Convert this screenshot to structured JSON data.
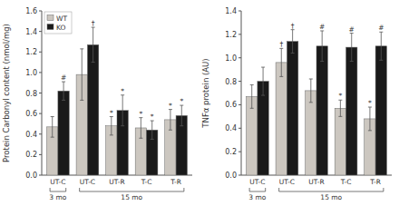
{
  "chart_data": [
    {
      "type": "bar",
      "y_label": "Protein Carbonyl content (nmol/mg)",
      "categories": [
        "UT-C",
        "UT-C",
        "UT-R",
        "T-C",
        "T-R"
      ],
      "series": [
        {
          "name": "WT",
          "color": "#ccc7c0",
          "values": [
            0.47,
            0.98,
            0.48,
            0.46,
            0.54
          ],
          "errors": [
            0.1,
            0.25,
            0.09,
            0.1,
            0.1
          ],
          "symbols": [
            null,
            null,
            "*",
            "*",
            "*"
          ]
        },
        {
          "name": "KO",
          "color": "#1a1a1a",
          "values": [
            0.82,
            1.27,
            0.63,
            0.44,
            0.58
          ],
          "errors": [
            0.09,
            0.17,
            0.15,
            0.09,
            0.1
          ],
          "symbols": [
            "#",
            "†",
            "*",
            "*",
            "*"
          ]
        }
      ],
      "ylim": [
        0,
        1.6
      ],
      "yticks": [
        {
          "value": 0.0,
          "label": "0.0"
        },
        0.2,
        0.4,
        0.6,
        0.8,
        {
          "value": 1.0,
          "label": "1.0"
        },
        1.2,
        1.4,
        1.6
      ],
      "annotations": [
        {
          "text": "3 mo",
          "from": 0,
          "to": 0
        },
        {
          "text": "15 mo",
          "from": 1,
          "to": 4
        }
      ],
      "legend": "upper left"
    },
    {
      "type": "bar",
      "y_label": "TNFα protein (AU)",
      "categories": [
        "UT-C",
        "UT-C",
        "UT-R",
        "T-C",
        "T-R"
      ],
      "series": [
        {
          "name": "WT",
          "color": "#ccc7c0",
          "values": [
            0.67,
            0.96,
            0.72,
            0.57,
            0.48
          ],
          "errors": [
            0.1,
            0.12,
            0.1,
            0.07,
            0.1
          ],
          "symbols": [
            null,
            "†",
            null,
            "*",
            "*"
          ]
        },
        {
          "name": "KO",
          "color": "#1a1a1a",
          "values": [
            0.8,
            1.14,
            1.1,
            1.09,
            1.1
          ],
          "errors": [
            0.12,
            0.1,
            0.13,
            0.12,
            0.12
          ],
          "symbols": [
            null,
            "†",
            "#",
            "#",
            "#"
          ]
        }
      ],
      "ylim": [
        0,
        1.4
      ],
      "yticks": [
        {
          "value": 0.0,
          "label": "0.0"
        },
        0.2,
        0.4,
        0.6,
        0.8,
        {
          "value": 1.0,
          "label": "1.0"
        },
        1.2,
        1.4
      ],
      "annotations": [
        {
          "text": "3 mo",
          "from": 0,
          "to": 0
        },
        {
          "text": "15 mo",
          "from": 1,
          "to": 4
        }
      ]
    }
  ]
}
